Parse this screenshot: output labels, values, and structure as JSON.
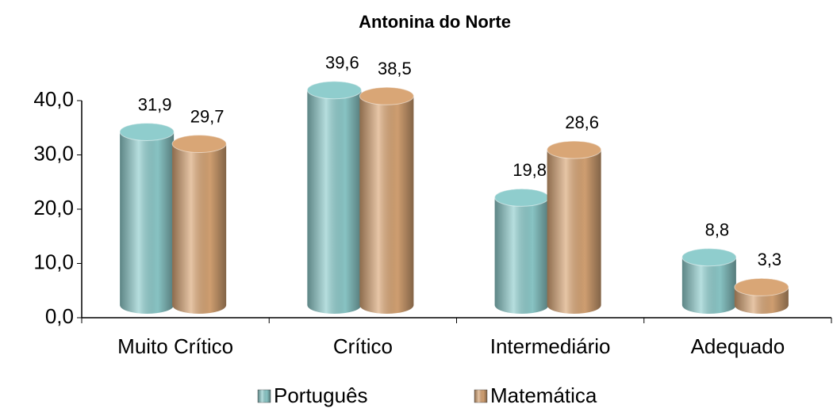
{
  "chart_data": {
    "type": "bar",
    "title": "Antonina do Norte",
    "categories": [
      "Muito Crítico",
      "Crítico",
      "Intermediário",
      "Adequado"
    ],
    "series": [
      {
        "name": "Português",
        "color": "#8fcdcd",
        "values": [
          31.9,
          39.6,
          19.8,
          8.8
        ],
        "value_labels": [
          "31,9",
          "39,6",
          "19,8",
          "8,8"
        ]
      },
      {
        "name": "Matemática",
        "color": "#d9a676",
        "values": [
          29.7,
          38.5,
          28.6,
          3.3
        ],
        "value_labels": [
          "29,7",
          "38,5",
          "28,6",
          "3,3"
        ]
      }
    ],
    "ylim": [
      0,
      40
    ],
    "yticks": [
      {
        "value": 0,
        "label": "0,0"
      },
      {
        "value": 10,
        "label": "10,0"
      },
      {
        "value": 20,
        "label": "20,0"
      },
      {
        "value": 30,
        "label": "30,0"
      },
      {
        "value": 40,
        "label": "40,0"
      }
    ],
    "grid": false,
    "legend": "bottom"
  }
}
